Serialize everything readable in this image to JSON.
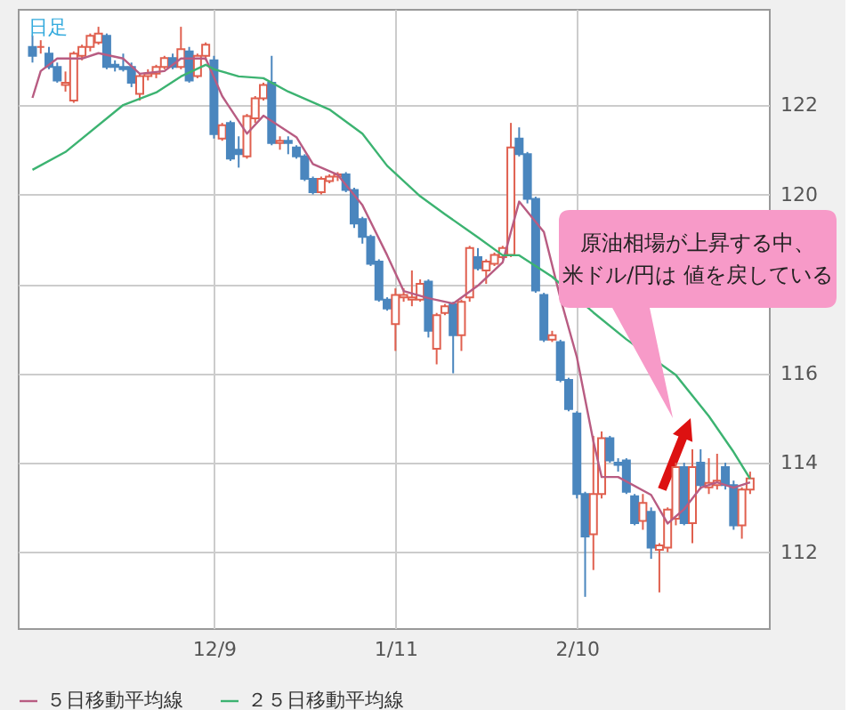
{
  "chart_data": {
    "type": "candlestick",
    "title": "日足",
    "categories": [
      null,
      null,
      null,
      null,
      null,
      null,
      null,
      null,
      null,
      null,
      null,
      null,
      null,
      null,
      null,
      null,
      null,
      null,
      null,
      null,
      null,
      null,
      "12/9",
      null,
      null,
      null,
      null,
      null,
      null,
      null,
      null,
      null,
      null,
      null,
      null,
      null,
      null,
      null,
      null,
      null,
      null,
      null,
      null,
      null,
      "1/11",
      null,
      null,
      null,
      null,
      null,
      null,
      null,
      null,
      null,
      null,
      null,
      null,
      null,
      null,
      null,
      null,
      null,
      null,
      null,
      null,
      null,
      "2/10",
      null,
      null,
      null,
      null,
      null,
      null,
      null,
      null,
      null,
      null,
      null,
      null,
      null,
      null,
      null,
      null,
      null,
      null,
      null,
      null,
      null
    ],
    "ohlc": [
      [
        123.3,
        123.55,
        122.95,
        123.1
      ],
      [
        123.3,
        123.45,
        123.15,
        123.3
      ],
      [
        123.15,
        123.3,
        122.8,
        122.85
      ],
      [
        122.85,
        122.95,
        122.5,
        122.55
      ],
      [
        122.45,
        122.75,
        122.3,
        122.5
      ],
      [
        122.1,
        123.2,
        122.05,
        123.15
      ],
      [
        123.1,
        123.35,
        123.0,
        123.3
      ],
      [
        123.3,
        123.6,
        123.2,
        123.55
      ],
      [
        123.4,
        123.75,
        123.35,
        123.6
      ],
      [
        123.55,
        123.6,
        122.8,
        122.85
      ],
      [
        122.9,
        123.0,
        122.75,
        122.85
      ],
      [
        122.85,
        123.15,
        122.75,
        122.8
      ],
      [
        122.85,
        122.95,
        122.4,
        122.5
      ],
      [
        122.25,
        122.7,
        122.1,
        122.65
      ],
      [
        122.65,
        122.8,
        122.55,
        122.7
      ],
      [
        122.7,
        122.9,
        122.6,
        122.85
      ],
      [
        122.85,
        123.1,
        122.8,
        123.05
      ],
      [
        123.05,
        123.15,
        122.8,
        122.85
      ],
      [
        122.85,
        123.75,
        122.8,
        123.25
      ],
      [
        123.2,
        123.3,
        122.5,
        122.55
      ],
      [
        122.65,
        123.15,
        122.6,
        123.1
      ],
      [
        123.1,
        123.4,
        123.0,
        123.35
      ],
      [
        123.0,
        123.1,
        121.25,
        121.35
      ],
      [
        121.25,
        121.6,
        121.2,
        121.55
      ],
      [
        121.6,
        121.65,
        120.75,
        120.8
      ],
      [
        121.0,
        121.3,
        120.6,
        120.9
      ],
      [
        120.85,
        121.8,
        120.8,
        121.75
      ],
      [
        121.7,
        122.2,
        121.6,
        122.15
      ],
      [
        122.15,
        122.5,
        122.1,
        122.45
      ],
      [
        122.5,
        123.1,
        121.1,
        121.15
      ],
      [
        121.15,
        121.3,
        121.0,
        121.2
      ],
      [
        121.2,
        121.3,
        120.9,
        121.15
      ],
      [
        121.05,
        121.1,
        120.8,
        120.85
      ],
      [
        120.85,
        120.9,
        120.3,
        120.35
      ],
      [
        120.35,
        120.4,
        120.0,
        120.05
      ],
      [
        120.05,
        120.4,
        120.0,
        120.35
      ],
      [
        120.3,
        120.45,
        120.25,
        120.4
      ],
      [
        120.4,
        120.5,
        120.3,
        120.45
      ],
      [
        120.45,
        120.5,
        120.05,
        120.1
      ],
      [
        120.1,
        120.15,
        119.25,
        119.35
      ],
      [
        119.45,
        119.5,
        118.9,
        119.05
      ],
      [
        119.05,
        119.1,
        118.4,
        118.45
      ],
      [
        118.5,
        118.55,
        117.6,
        117.65
      ],
      [
        117.65,
        117.7,
        117.4,
        117.45
      ],
      [
        117.1,
        117.9,
        116.5,
        117.75
      ],
      [
        117.7,
        117.9,
        117.6,
        117.75
      ],
      [
        117.65,
        118.3,
        117.5,
        117.7
      ],
      [
        117.65,
        118.1,
        117.6,
        118.0
      ],
      [
        118.05,
        118.1,
        116.8,
        116.95
      ],
      [
        116.55,
        117.35,
        116.2,
        117.3
      ],
      [
        117.35,
        117.55,
        117.3,
        117.5
      ],
      [
        117.55,
        117.6,
        116.0,
        116.85
      ],
      [
        116.85,
        117.65,
        116.5,
        117.6
      ],
      [
        117.7,
        118.85,
        117.6,
        118.8
      ],
      [
        118.6,
        118.8,
        118.3,
        118.35
      ],
      [
        118.3,
        118.55,
        118.0,
        118.5
      ],
      [
        118.45,
        118.7,
        118.4,
        118.65
      ],
      [
        118.6,
        118.85,
        118.55,
        118.8
      ],
      [
        118.65,
        121.6,
        118.6,
        121.05
      ],
      [
        121.25,
        121.5,
        120.85,
        120.9
      ],
      [
        120.9,
        120.95,
        119.8,
        119.9
      ],
      [
        119.9,
        119.95,
        117.8,
        117.85
      ],
      [
        117.75,
        117.8,
        116.7,
        116.75
      ],
      [
        116.75,
        116.95,
        116.7,
        116.85
      ],
      [
        116.7,
        116.75,
        115.8,
        115.85
      ],
      [
        115.85,
        115.9,
        115.15,
        115.2
      ],
      [
        115.1,
        115.15,
        113.2,
        113.3
      ],
      [
        113.3,
        113.35,
        111.0,
        112.35
      ],
      [
        112.4,
        114.6,
        111.6,
        113.3
      ],
      [
        113.3,
        114.7,
        113.2,
        114.55
      ],
      [
        114.55,
        114.6,
        114.0,
        114.05
      ],
      [
        114.0,
        114.1,
        113.8,
        113.95
      ],
      [
        114.05,
        114.1,
        113.3,
        113.35
      ],
      [
        113.25,
        113.3,
        112.6,
        112.65
      ],
      [
        112.7,
        113.3,
        112.5,
        113.1
      ],
      [
        112.9,
        113.0,
        111.85,
        112.1
      ],
      [
        112.05,
        112.2,
        111.1,
        112.15
      ],
      [
        112.1,
        113.0,
        112.0,
        112.95
      ],
      [
        112.75,
        114.0,
        112.6,
        113.9
      ],
      [
        113.9,
        114.0,
        112.6,
        112.65
      ],
      [
        112.65,
        114.3,
        112.2,
        113.9
      ],
      [
        114.0,
        114.3,
        113.4,
        113.5
      ],
      [
        113.45,
        114.1,
        113.3,
        113.55
      ],
      [
        113.5,
        114.2,
        113.4,
        113.6
      ],
      [
        113.9,
        114.0,
        113.4,
        113.5
      ],
      [
        113.5,
        113.6,
        112.5,
        112.6
      ],
      [
        112.6,
        113.45,
        112.3,
        113.4
      ],
      [
        113.4,
        113.8,
        113.3,
        113.65
      ]
    ],
    "series": [
      {
        "name": "５日移動平均線",
        "type": "line",
        "color": "#b85c82",
        "values": [
          122.16,
          122.76,
          null,
          123.04,
          null,
          null,
          123.04,
          null,
          123.16,
          null,
          null,
          123.04,
          null,
          122.7,
          null,
          null,
          122.76,
          null,
          123.04,
          null,
          null,
          123.04,
          null,
          122.2,
          null,
          null,
          121.36,
          null,
          121.76,
          null,
          null,
          null,
          121.28,
          null,
          120.68,
          null,
          null,
          120.44,
          null,
          null,
          119.76,
          null,
          null,
          118.64,
          null,
          117.84,
          null,
          null,
          117.68,
          null,
          null,
          117.56,
          null,
          null,
          117.96,
          null,
          null,
          118.48,
          null,
          119.84,
          null,
          null,
          119.16,
          null,
          117.68,
          null,
          116.36,
          null,
          114.48,
          113.68,
          null,
          113.68,
          null,
          null,
          null,
          113.28,
          null,
          112.64,
          null,
          112.96,
          null,
          113.44,
          null,
          113.56,
          null,
          113.44,
          null,
          113.56
        ]
      },
      {
        "name": "２５日移動平均線",
        "type": "line",
        "color": "#3cb371",
        "values": [
          120.55,
          null,
          null,
          null,
          120.95,
          null,
          null,
          null,
          null,
          null,
          null,
          122.0,
          null,
          null,
          null,
          122.28,
          null,
          null,
          122.64,
          null,
          null,
          122.9,
          122.8,
          null,
          null,
          122.64,
          null,
          null,
          122.6,
          null,
          null,
          122.3,
          null,
          null,
          null,
          null,
          121.9,
          null,
          null,
          null,
          121.36,
          null,
          null,
          120.64,
          null,
          null,
          null,
          119.96,
          null,
          null,
          119.56,
          null,
          null,
          null,
          119.04,
          null,
          null,
          118.64,
          null,
          118.64,
          null,
          null,
          null,
          118.16,
          null,
          null,
          null,
          null,
          117.36,
          null,
          null,
          null,
          116.76,
          null,
          null,
          null,
          null,
          null,
          115.96,
          null,
          null,
          null,
          115.04,
          null,
          null,
          114.24,
          null,
          113.64
        ]
      }
    ],
    "annotations": [
      "原油相場が上昇する中、",
      "米ドル/円は 値を戻している"
    ],
    "ylim": [
      110.3,
      124.15
    ],
    "yticks": [
      112,
      114,
      116,
      {
        "value": 118,
        "label": null
      },
      120,
      122
    ],
    "grid": true,
    "legend": "bottom"
  }
}
